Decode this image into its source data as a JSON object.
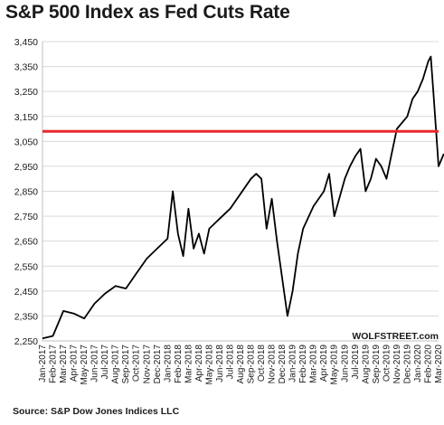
{
  "chart_data": {
    "type": "line",
    "title": "S&P 500 Index as Fed Cuts Rate",
    "xlabel": "",
    "ylabel": "",
    "ylim": [
      2250,
      3450
    ],
    "yticks": [
      "3,450",
      "3,350",
      "3,250",
      "3,150",
      "3,050",
      "2,950",
      "2,850",
      "2,750",
      "2,650",
      "2,550",
      "2,450",
      "2,350",
      "2,250"
    ],
    "xticks": [
      "Jan-2017",
      "Feb-2017",
      "Mar-2017",
      "Apr-2017",
      "May-2017",
      "Jun-2017",
      "Jul-2017",
      "Aug-2017",
      "Sep-2017",
      "Oct-2017",
      "Nov-2017",
      "Dec-2017",
      "Jan-2018",
      "Feb-2018",
      "Mar-2018",
      "Apr-2018",
      "May-2018",
      "Jun-2018",
      "Jul-2018",
      "Aug-2018",
      "Sep-2018",
      "Oct-2018",
      "Nov-2018",
      "Dec-2018",
      "Jan-2019",
      "Feb-2019",
      "Mar-2019",
      "Apr-2019",
      "May-2019",
      "Jun-2019",
      "Jul-2019",
      "Aug-2019",
      "Sep-2019",
      "Oct-2019",
      "Nov-2019",
      "Dec-2019",
      "Jan-2020",
      "Feb-2020",
      "Mar-2020"
    ],
    "grid": true,
    "line_color": "#000000",
    "reference_line": {
      "value": 3090,
      "color": "#e8282b"
    },
    "series": [
      {
        "x": [
          "Jan-2017",
          "Feb-2017",
          "Mar-2017",
          "Apr-2017",
          "May-2017",
          "Jun-2017",
          "Jul-2017",
          "Aug-2017",
          "Sep-2017",
          "Oct-2017",
          "Nov-2017",
          "Dec-2017",
          "Jan-2018",
          "Jan-2018",
          "Feb-2018",
          "Feb-2018",
          "Mar-2018",
          "Mar-2018",
          "Apr-2018",
          "Apr-2018",
          "May-2018",
          "Jun-2018",
          "Jul-2018",
          "Aug-2018",
          "Sep-2018",
          "Sep-2018",
          "Oct-2018",
          "Oct-2018",
          "Nov-2018",
          "Nov-2018",
          "Dec-2018",
          "Dec-2018",
          "Jan-2019",
          "Jan-2019",
          "Feb-2019",
          "Mar-2019",
          "Apr-2019",
          "Apr-2019",
          "May-2019",
          "Jun-2019",
          "Jun-2019",
          "Jul-2019",
          "Jul-2019",
          "Aug-2019",
          "Aug-2019",
          "Sep-2019",
          "Sep-2019",
          "Oct-2019",
          "Oct-2019",
          "Nov-2019",
          "Dec-2019",
          "Dec-2019",
          "Jan-2020",
          "Jan-2020",
          "Feb-2020",
          "Feb-2020",
          "Feb-2020",
          "Feb-2020",
          "Mar-2020",
          "Mar-2020"
        ],
        "values": [
          2260,
          2270,
          2370,
          2360,
          2340,
          2400,
          2440,
          2470,
          2460,
          2520,
          2580,
          2620,
          2660,
          2850,
          2680,
          2590,
          2780,
          2620,
          2680,
          2600,
          2700,
          2740,
          2780,
          2840,
          2900,
          2920,
          2900,
          2700,
          2820,
          2650,
          2500,
          2350,
          2450,
          2600,
          2700,
          2790,
          2850,
          2920,
          2750,
          2900,
          2950,
          2990,
          3020,
          2850,
          2900,
          2980,
          2950,
          2900,
          3000,
          3100,
          3150,
          3220,
          3250,
          3300,
          3370,
          3390,
          3250,
          3100,
          2950,
          3000
        ]
      }
    ],
    "source": "Source: S&P Dow Jones Indices LLC",
    "watermark": "WOLFSTREET.com"
  }
}
